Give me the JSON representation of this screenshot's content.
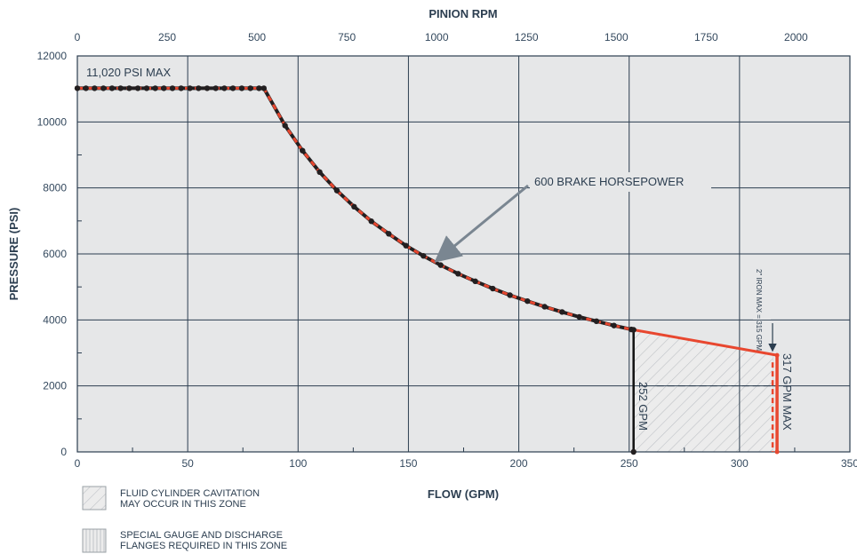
{
  "chart_data": {
    "type": "line",
    "title": "",
    "xlabel": "FLOW (GPM)",
    "ylabel": "PRESSURE (PSI)",
    "x2label": "PINION RPM",
    "xlim": [
      0,
      350
    ],
    "ylim": [
      0,
      12000
    ],
    "x2lim": [
      0,
      2150
    ],
    "x_ticks": [
      "0",
      "50",
      "100",
      "150",
      "200",
      "250",
      "300",
      "350"
    ],
    "y_ticks": [
      "0",
      "2000",
      "4000",
      "6000",
      "8000",
      "10000",
      "12000"
    ],
    "x2_ticks": [
      "0",
      "250",
      "500",
      "750",
      "1000",
      "1250",
      "1500",
      "1750",
      "2000"
    ],
    "grid": true,
    "series": [
      {
        "name": "600 BRAKE HORSEPOWER",
        "color": "#e8472f",
        "x": [
          0,
          3.9,
          7.8,
          11.8,
          15.7,
          19.6,
          23.5,
          27.4,
          31.4,
          35.3,
          39.2,
          43.1,
          47.0,
          51.0,
          54.9,
          58.8,
          62.7,
          66.6,
          70.5,
          74.5,
          78.4,
          82.3,
          84.5,
          94.1,
          102.0,
          109.8,
          117.6,
          125.4,
          133.2,
          141.1,
          148.9,
          156.8,
          164.6,
          172.5,
          180.3,
          188.2,
          196.0,
          203.9,
          211.7,
          219.6,
          227.4,
          235.2,
          243.1,
          251.0,
          252
        ],
        "y": [
          11020,
          11020,
          11020,
          11020,
          11020,
          11020,
          11020,
          11020,
          11020,
          11020,
          11020,
          11020,
          11020,
          11020,
          11020,
          11020,
          11020,
          11020,
          11020,
          11020,
          11020,
          11020,
          11020,
          9890,
          9130,
          8480,
          7920,
          7430,
          6990,
          6610,
          6250,
          5940,
          5660,
          5400,
          5170,
          4950,
          4750,
          4570,
          4400,
          4240,
          4090,
          3960,
          3830,
          3710,
          3700
        ]
      }
    ],
    "extension_line": {
      "x": [
        252,
        317
      ],
      "y": [
        3700,
        2930
      ],
      "color": "#e8472f"
    },
    "max_lines": [
      {
        "label": "252 GPM",
        "x": 252,
        "color": "#111111"
      },
      {
        "label": "317 GPM MAX",
        "x": 317,
        "color": "#e8472f"
      },
      {
        "label": "2\" IRON MAX = 315 GPM",
        "x": 315,
        "color": "#e8472f"
      }
    ],
    "pressure_max_label": "11,020 PSI MAX",
    "annotations": [
      "600 BRAKE HORSEPOWER"
    ],
    "legend": [
      {
        "line1": "FLUID CYLINDER CAVITATION",
        "line2": "MAY OCCUR IN THIS ZONE",
        "pattern": "diagonal"
      },
      {
        "line1": "SPECIAL GAUGE AND DISCHARGE",
        "line2": "FLANGES REQUIRED IN THIS ZONE",
        "pattern": "vertical"
      }
    ],
    "colors": {
      "plot_bg": "#e6e7e8",
      "grid": "#2c3e50",
      "curve": "#e8472f",
      "marker": "#231f20",
      "arrow": "#7a8691"
    }
  }
}
